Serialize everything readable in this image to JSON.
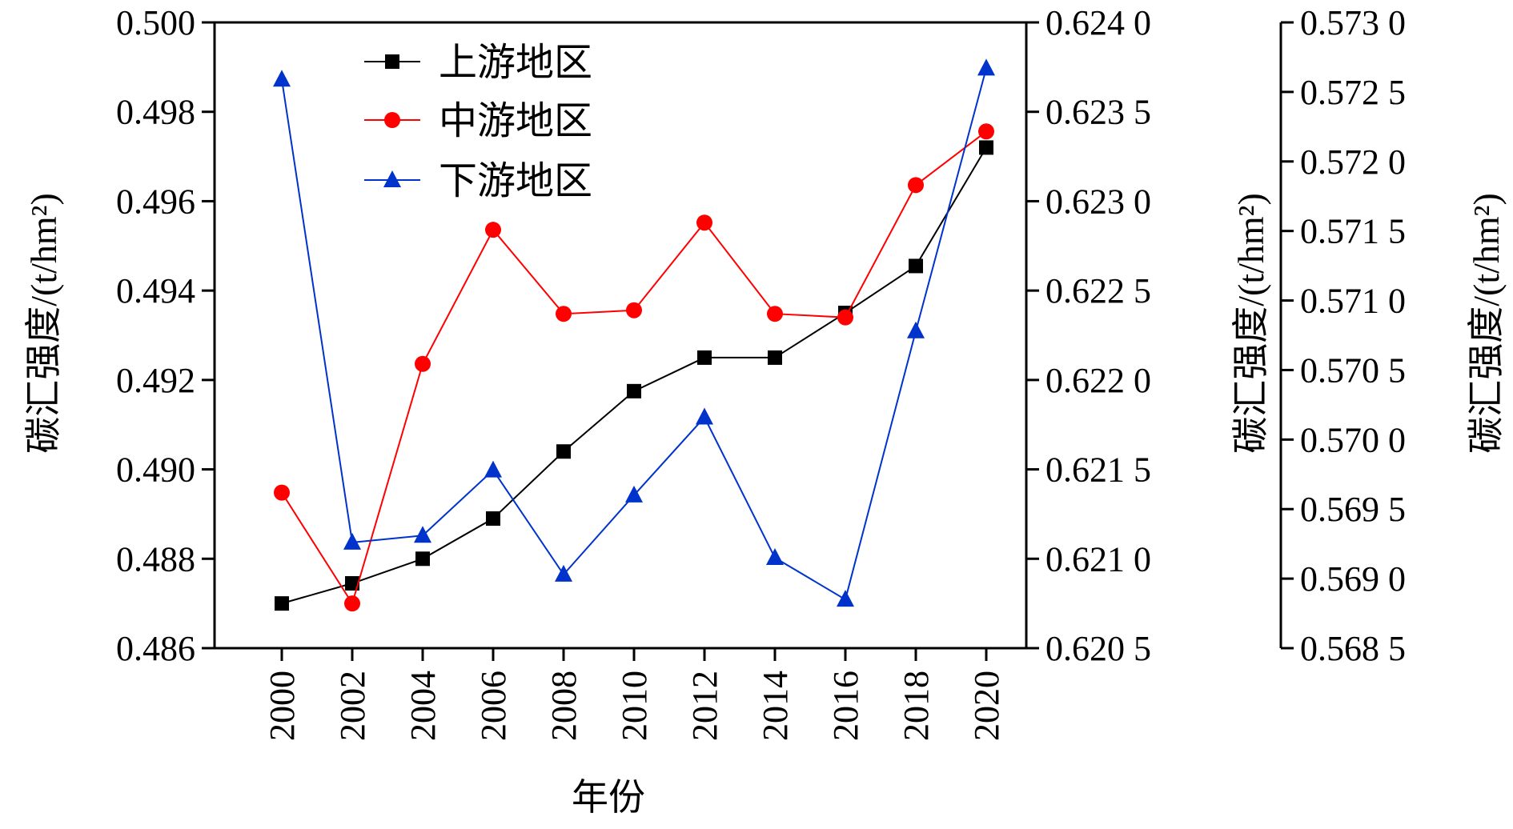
{
  "chart_data": {
    "type": "line",
    "xlabel": "年份",
    "categories": [
      "2000",
      "2002",
      "2004",
      "2006",
      "2008",
      "2010",
      "2012",
      "2014",
      "2016",
      "2018",
      "2020"
    ],
    "axes": {
      "left": {
        "label": "碳汇强度/(t/hm²)",
        "ylim": [
          0.486,
          0.5
        ],
        "ticks": [
          0.486,
          0.488,
          0.49,
          0.492,
          0.494,
          0.496,
          0.498,
          0.5
        ],
        "tick_labels": [
          "0.486",
          "0.488",
          "0.490",
          "0.492",
          "0.494",
          "0.496",
          "0.498",
          "0.500"
        ]
      },
      "right1": {
        "label": "碳汇强度/(t/hm²)",
        "ylim": [
          0.6205,
          0.624
        ],
        "ticks": [
          0.6205,
          0.621,
          0.6215,
          0.622,
          0.6225,
          0.623,
          0.6235,
          0.624
        ],
        "tick_labels": [
          "0.620 5",
          "0.621 0",
          "0.621 5",
          "0.622 0",
          "0.622 5",
          "0.623 0",
          "0.623 5",
          "0.624 0"
        ]
      },
      "right2": {
        "label": "碳汇强度/(t/hm²)",
        "ylim": [
          0.5685,
          0.573
        ],
        "ticks": [
          0.5685,
          0.569,
          0.5695,
          0.57,
          0.5705,
          0.571,
          0.5715,
          0.572,
          0.5725,
          0.573
        ],
        "tick_labels": [
          "0.568 5",
          "0.569 0",
          "0.569 5",
          "0.570 0",
          "0.570 5",
          "0.571 0",
          "0.571 5",
          "0.572 0",
          "0.572 5",
          "0.573 0"
        ]
      }
    },
    "series": [
      {
        "name": "上游地区",
        "axis": "left",
        "color": "#000000",
        "marker": "square",
        "values": [
          0.487,
          0.48745,
          0.488,
          0.4889,
          0.4904,
          0.49175,
          0.4925,
          0.4925,
          0.4935,
          0.49455,
          0.4972
        ]
      },
      {
        "name": "中游地区",
        "axis": "right1",
        "color": "#ff0000",
        "marker": "circle",
        "values": [
          0.62137,
          0.62075,
          0.62209,
          0.62284,
          0.62237,
          0.62239,
          0.62288,
          0.62237,
          0.62235,
          0.62309,
          0.62339
        ]
      },
      {
        "name": "下游地区",
        "axis": "right2",
        "color": "#0033cc",
        "marker": "triangle",
        "values": [
          0.57259,
          0.56926,
          0.56931,
          0.56978,
          0.56903,
          0.5696,
          0.57016,
          0.56915,
          0.56885,
          0.57078,
          0.57267
        ]
      }
    ],
    "legend_position": "top-left"
  }
}
